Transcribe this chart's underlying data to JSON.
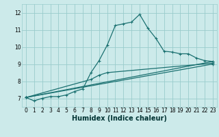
{
  "xlabel": "Humidex (Indice chaleur)",
  "ylabel": "",
  "xlim": [
    -0.5,
    23.5
  ],
  "ylim": [
    6.5,
    12.5
  ],
  "yticks": [
    7,
    8,
    9,
    10,
    11,
    12
  ],
  "xticks": [
    0,
    1,
    2,
    3,
    4,
    5,
    6,
    7,
    8,
    9,
    10,
    11,
    12,
    13,
    14,
    15,
    16,
    17,
    18,
    19,
    20,
    21,
    22,
    23
  ],
  "bg_color": "#cceaea",
  "line_color": "#1a7070",
  "grid_color": "#99cccc",
  "line1_x": [
    0,
    1,
    2,
    3,
    4,
    5,
    6,
    7,
    8,
    9,
    10,
    11,
    12,
    13,
    14,
    15,
    16,
    17,
    18,
    19,
    20,
    21,
    22,
    23
  ],
  "line1_y": [
    7.05,
    6.85,
    7.0,
    7.1,
    7.1,
    7.2,
    7.4,
    7.55,
    8.5,
    9.2,
    10.1,
    11.25,
    11.35,
    11.45,
    11.9,
    11.1,
    10.5,
    9.75,
    9.7,
    9.6,
    9.6,
    9.35,
    9.2,
    9.15
  ],
  "line2_x": [
    0,
    23
  ],
  "line2_y": [
    7.05,
    9.15
  ],
  "line3_x": [
    0,
    23
  ],
  "line3_y": [
    7.05,
    9.0
  ],
  "line4_x": [
    0,
    8,
    9,
    10,
    23
  ],
  "line4_y": [
    7.05,
    8.1,
    8.35,
    8.5,
    9.05
  ]
}
